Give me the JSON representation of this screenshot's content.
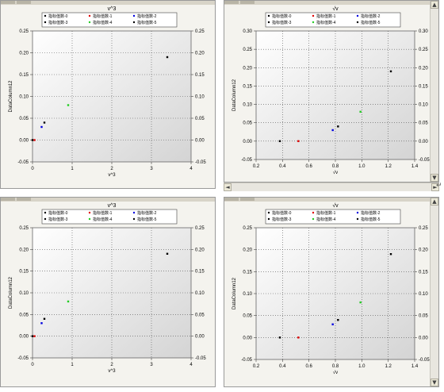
{
  "panes": [
    {
      "key": "p0",
      "title": "v^3",
      "xlabel": "v^3",
      "ylabel": "DataColumn12",
      "legend": [
        "指标值数-0",
        "指标值数-1",
        "指标值数-2",
        "指标值数-3",
        "指标值数-4",
        "指标值数-5"
      ],
      "legend_colors": [
        "#000000",
        "#e00000",
        "#0000e0",
        "#000000",
        "#22cc22",
        "#000000"
      ],
      "chart_data": {
        "type": "scatter",
        "xlim": [
          0,
          4
        ],
        "ylim": [
          -0.05,
          0.25
        ],
        "xticks": [
          "0",
          "1",
          "2",
          "3",
          "4"
        ],
        "yticks": [
          "-0.05",
          "0.00",
          "0.05",
          "0.10",
          "0.15",
          "0.20",
          "0.25"
        ],
        "yticks_right": [
          "-0.05",
          "0.00",
          "0.05",
          "0.10",
          "0.15",
          "0.20",
          "0.25"
        ],
        "grid": true,
        "series": [
          {
            "name": "指标值数-0",
            "color": "#000000",
            "points": [
              [
                3.4,
                0.19
              ]
            ]
          },
          {
            "name": "指标值数-1",
            "color": "#e00000",
            "points": [
              [
                0.05,
                0.0
              ]
            ]
          },
          {
            "name": "指标值数-2",
            "color": "#0000e0",
            "points": [
              [
                0.23,
                0.03
              ]
            ]
          },
          {
            "name": "指标值数-3",
            "color": "#000000",
            "points": [
              [
                0.3,
                0.04
              ]
            ]
          },
          {
            "name": "指标值数-4",
            "color": "#22cc22",
            "points": [
              [
                0.9,
                0.08
              ]
            ]
          },
          {
            "name": "指标值数-5",
            "color": "#000000",
            "points": [
              [
                0.0,
                0.0
              ]
            ]
          }
        ]
      }
    },
    {
      "key": "p1",
      "title": "√v",
      "xlabel": "√v",
      "ylabel": "DataColumn12",
      "legend": [
        "指标值数-0",
        "指标值数-1",
        "指标值数-2",
        "指标值数-3",
        "指标值数-4",
        "指标值数-5"
      ],
      "legend_colors": [
        "#000000",
        "#e00000",
        "#0000e0",
        "#000000",
        "#22cc22",
        "#000000"
      ],
      "chart_data": {
        "type": "scatter",
        "xlim": [
          0.2,
          1.4
        ],
        "ylim": [
          -0.05,
          0.3
        ],
        "xticks": [
          "0.2",
          "0.4",
          "0.6",
          "0.8",
          "1.0",
          "1.2",
          "1.4"
        ],
        "yticks": [
          "-0.05",
          "0.00",
          "0.05",
          "0.10",
          "0.15",
          "0.20",
          "0.25",
          "0.30"
        ],
        "yticks_right": [
          "-0.05",
          "0.00",
          "0.05",
          "0.10",
          "0.15",
          "0.20",
          "0.25",
          "0.30"
        ],
        "grid": true,
        "series": [
          {
            "name": "指标值数-0",
            "color": "#000000",
            "points": [
              [
                1.22,
                0.19
              ]
            ]
          },
          {
            "name": "指标值数-1",
            "color": "#e00000",
            "points": [
              [
                0.52,
                0.0
              ]
            ]
          },
          {
            "name": "指标值数-2",
            "color": "#0000e0",
            "points": [
              [
                0.78,
                0.03
              ]
            ]
          },
          {
            "name": "指标值数-3",
            "color": "#000000",
            "points": [
              [
                0.82,
                0.04
              ]
            ]
          },
          {
            "name": "指标值数-4",
            "color": "#22cc22",
            "points": [
              [
                0.99,
                0.08
              ]
            ]
          },
          {
            "name": "指标值数-5",
            "color": "#000000",
            "points": [
              [
                0.38,
                0.0
              ]
            ]
          }
        ]
      }
    },
    {
      "key": "p2",
      "title": "v^3",
      "xlabel": "v^3",
      "ylabel": "DataColumn12",
      "legend": [
        "指标值数-0",
        "指标值数-1",
        "指标值数-2",
        "指标值数-3",
        "指标值数-4",
        "指标值数-5"
      ],
      "legend_colors": [
        "#000000",
        "#e00000",
        "#0000e0",
        "#000000",
        "#22cc22",
        "#000000"
      ],
      "chart_data": {
        "type": "scatter",
        "xlim": [
          0,
          4
        ],
        "ylim": [
          -0.05,
          0.25
        ],
        "xticks": [
          "0",
          "1",
          "2",
          "3",
          "4"
        ],
        "yticks": [
          "-0.05",
          "0.00",
          "0.05",
          "0.10",
          "0.15",
          "0.20",
          "0.25"
        ],
        "yticks_right": [
          "-0.05",
          "0.00",
          "0.05",
          "0.10",
          "0.15",
          "0.20",
          "0.25"
        ],
        "grid": true,
        "series": [
          {
            "name": "指标值数-0",
            "color": "#000000",
            "points": [
              [
                3.4,
                0.19
              ]
            ]
          },
          {
            "name": "指标值数-1",
            "color": "#e00000",
            "points": [
              [
                0.05,
                0.0
              ]
            ]
          },
          {
            "name": "指标值数-2",
            "color": "#0000e0",
            "points": [
              [
                0.23,
                0.03
              ]
            ]
          },
          {
            "name": "指标值数-3",
            "color": "#000000",
            "points": [
              [
                0.3,
                0.04
              ]
            ]
          },
          {
            "name": "指标值数-4",
            "color": "#22cc22",
            "points": [
              [
                0.9,
                0.08
              ]
            ]
          },
          {
            "name": "指标值数-5",
            "color": "#000000",
            "points": [
              [
                0.0,
                0.0
              ]
            ]
          }
        ]
      }
    },
    {
      "key": "p3",
      "title": "√v",
      "xlabel": "√v",
      "ylabel": "DataColumn12",
      "legend": [
        "指标值数-0",
        "指标值数-1",
        "指标值数-2",
        "指标值数-3",
        "指标值数-4",
        "指标值数-5"
      ],
      "legend_colors": [
        "#000000",
        "#e00000",
        "#0000e0",
        "#000000",
        "#22cc22",
        "#000000"
      ],
      "chart_data": {
        "type": "scatter",
        "xlim": [
          0.2,
          1.4
        ],
        "ylim": [
          -0.05,
          0.25
        ],
        "xticks": [
          "0.2",
          "0.4",
          "0.6",
          "0.8",
          "1.0",
          "1.2",
          "1.4"
        ],
        "yticks": [
          "-0.05",
          "0.00",
          "0.05",
          "0.10",
          "0.15",
          "0.20",
          "0.25"
        ],
        "yticks_right": [
          "-0.05",
          "0.00",
          "0.05",
          "0.10",
          "0.15",
          "0.20",
          "0.25"
        ],
        "grid": true,
        "series": [
          {
            "name": "指标值数-0",
            "color": "#000000",
            "points": [
              [
                1.22,
                0.19
              ]
            ]
          },
          {
            "name": "指标值数-1",
            "color": "#e00000",
            "points": [
              [
                0.52,
                0.0
              ]
            ]
          },
          {
            "name": "指标值数-2",
            "color": "#0000e0",
            "points": [
              [
                0.78,
                0.03
              ]
            ]
          },
          {
            "name": "指标值数-3",
            "color": "#000000",
            "points": [
              [
                0.82,
                0.04
              ]
            ]
          },
          {
            "name": "指标值数-4",
            "color": "#22cc22",
            "points": [
              [
                0.99,
                0.08
              ]
            ]
          },
          {
            "name": "指标值数-5",
            "color": "#000000",
            "points": [
              [
                0.38,
                0.0
              ]
            ]
          }
        ]
      }
    }
  ],
  "scroll": {
    "up_arrow": "▲",
    "down_arrow": "▼",
    "left_arrow": "◄",
    "right_arrow": "►",
    "resize_arrow": "↵"
  }
}
